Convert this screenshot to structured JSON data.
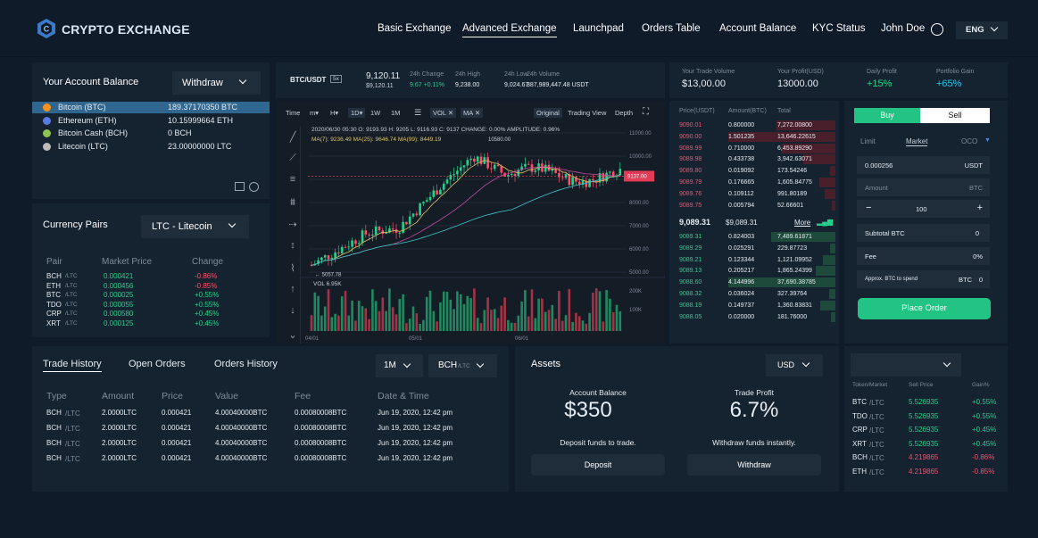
{
  "header": {
    "logo": "CRYPTO EXCHANGE",
    "nav": [
      "Basic Exchange",
      "Advanced Exchange",
      "Launchpad",
      "Orders Table",
      "Account Balance",
      "KYC Status"
    ],
    "user": "John Doe",
    "lang": "ENG"
  },
  "account": {
    "title": "Your Account Balance",
    "withdraw": "Withdraw",
    "coins": [
      {
        "name": "Bitcoin (BTC)",
        "amt": "189.37170350 BTC",
        "color": "#f7931a"
      },
      {
        "name": "Ethereum (ETH)",
        "amt": "10.15999664 ETH",
        "color": "#5b7be0"
      },
      {
        "name": "Bitcoin Cash (BCH)",
        "amt": "0 BCH",
        "color": "#8dc351"
      },
      {
        "name": "Litecoin (LTC)",
        "amt": "23.00000000 LTC",
        "color": "#bfbbbb"
      }
    ]
  },
  "pairs": {
    "title": "Currency Pairs",
    "selected": "LTC - Litecoin",
    "headers": [
      "Pair",
      "Market Price",
      "Change"
    ],
    "rows": [
      {
        "p": "BCH",
        "s": "/LTC",
        "price": "0.000421",
        "ch": "-0.86%",
        "up": false
      },
      {
        "p": "ETH",
        "s": "/LTC",
        "price": "0.000456",
        "ch": "-0.85%",
        "up": false
      },
      {
        "p": "BTC",
        "s": "/LTC",
        "price": "0.000025",
        "ch": "+0.55%",
        "up": true
      },
      {
        "p": "TDO",
        "s": "/LTC",
        "price": "0.000055",
        "ch": "+0.55%",
        "up": true
      },
      {
        "p": "CRP",
        "s": "/LTC",
        "price": "0.000580",
        "ch": "+0.45%",
        "up": true
      },
      {
        "p": "XRT",
        "s": "/LTC",
        "price": "0.000125",
        "ch": "+0.45%",
        "up": true
      }
    ]
  },
  "ticker": {
    "pair": "BTC/USDT",
    "lev": "5x",
    "price": "9,120.11",
    "price_sub": "$9,120.11",
    "stats": [
      {
        "label": "24h Change",
        "val": "9.67 +0.11%",
        "green": true
      },
      {
        "label": "24h High",
        "val": "9,238.00"
      },
      {
        "label": "24h Low",
        "val": "9,024.67"
      },
      {
        "label": "24h Volume",
        "val": "387,989,447.48 USDT"
      }
    ]
  },
  "chart": {
    "toolbar": [
      "Time",
      "m▾",
      "H▾",
      "1D▾",
      "1W",
      "1M",
      "VOL ✕",
      "MA ✕",
      "Original",
      "Trading View",
      "Depth"
    ],
    "ohlc": "2020/06/30 05:30  O: 9193.93  H: 9205  L: 9116.93  C: 9137  CHANGE: 0.00%  AMPLITUDE: 0.96%",
    "ma": "MA(7): 9236.49  MA(25): 9646.74  MA(99): 8449.19",
    "yticks": [
      "11000.00",
      "10000.00",
      "9000.00",
      "8000.00",
      "7000.00",
      "6000.00",
      "5000.00"
    ],
    "vticks": [
      "200K",
      "100K"
    ],
    "vol": "VOL 6.95K",
    "xticks": [
      "04/01",
      "05/01",
      "06/01"
    ],
    "hi": "10580.00",
    "lo": "5057.78",
    "last": "9137.00"
  },
  "trade": {
    "vol_label": "Your Trade Volume",
    "vol": "$13,00.00",
    "profit_label": "Your Profit(USD)",
    "profit": "13000.00",
    "daily_label": "Daily Profit",
    "daily": "+15%",
    "gain_label": "Portfolio Gain",
    "gain": "+65%"
  },
  "orderbook": {
    "headers": [
      "Price(USDT)",
      "Amount(BTC)",
      "Total"
    ],
    "asks": [
      [
        "9090.01",
        "0.800000",
        "7,272.00800",
        0.55
      ],
      [
        "9090.00",
        "1.501235",
        "13,646.22615",
        1
      ],
      [
        "9089.99",
        "0.710000",
        "6,453.89290",
        0.5
      ],
      [
        "9089.98",
        "0.433738",
        "3,942.63071",
        0.3
      ],
      [
        "9089.80",
        "0.019092",
        "173.54246",
        0.05
      ],
      [
        "9089.79",
        "0.176665",
        "1,605.84775",
        0.15
      ],
      [
        "9089.76",
        "0.109112",
        "991.80189",
        0.1
      ],
      [
        "9089.75",
        "0.005794",
        "52.66601",
        0.03
      ]
    ],
    "mid": "9,089.31",
    "mid2": "$9,089.31",
    "more": "More",
    "bids": [
      [
        "9089.31",
        "0.824003",
        "7,489.61871",
        0.6
      ],
      [
        "9089.29",
        "0.025291",
        "229.87723",
        0.05
      ],
      [
        "9089.21",
        "0.123344",
        "1,121.09952",
        0.12
      ],
      [
        "9089.13",
        "0.205217",
        "1,865.24399",
        0.18
      ],
      [
        "9088.60",
        "4.144996",
        "37,690.38785",
        1
      ],
      [
        "9088.32",
        "0.036024",
        "327.39764",
        0.06
      ],
      [
        "9088.19",
        "0.149737",
        "1,360.83831",
        0.14
      ],
      [
        "9088.05",
        "0.020000",
        "181.76000",
        0.04
      ]
    ]
  },
  "order": {
    "buy": "Buy",
    "sell": "Sell",
    "types": [
      "Limit",
      "Market",
      "OCO"
    ],
    "price": "0.000256",
    "price_unit": "USDT",
    "amount": "Amount",
    "amount_unit": "BTC",
    "qty": "100",
    "subtotal": "Subtotal BTC",
    "subtotal_val": "0",
    "fee": "Fee",
    "fee_val": "0%",
    "approx": "Approx. BTC to spend",
    "approx_unit": "BTC",
    "approx_val": "0",
    "place": "Place Order"
  },
  "history": {
    "tabs": [
      "Trade History",
      "Open Orders",
      "Orders History"
    ],
    "period": "1M",
    "pair": "BCH",
    "pair_sub": "/LTC",
    "headers": [
      "Type",
      "Amount",
      "Price",
      "Value",
      "Fee",
      "Date & Time"
    ],
    "rows": [
      [
        "BCH",
        "/LTC",
        "2.0000LTC",
        "0.000421",
        "4.00040000BTC",
        "0.00080008BTC",
        "Jun 19, 2020, 12:42 pm"
      ],
      [
        "BCH",
        "/LTC",
        "2.0000LTC",
        "0.000421",
        "4.00040000BTC",
        "0.00080008BTC",
        "Jun 19, 2020, 12:42 pm"
      ],
      [
        "BCH",
        "/LTC",
        "2.0000LTC",
        "0.000421",
        "4.00040000BTC",
        "0.00080008BTC",
        "Jun 19, 2020, 12:42 pm"
      ],
      [
        "BCH",
        "/LTC",
        "2.0000LTC",
        "0.000421",
        "4.00040000BTC",
        "0.00080008BTC",
        "Jun 19, 2020, 12:42 pm"
      ]
    ]
  },
  "assets": {
    "title": "Assets",
    "currency": "USD",
    "bal_label": "Account Balance",
    "bal": "$350",
    "deposit_text": "Deposit funds to trade.",
    "deposit": "Deposit",
    "tp_label": "Trade Profit",
    "tp": "6.7%",
    "withdraw_text": "Withdraw funds instantly.",
    "withdraw": "Withdraw"
  },
  "market": {
    "headers": [
      "Token/Market",
      "Sell Price",
      "Gain%"
    ],
    "rows": [
      {
        "p": "BTC",
        "s": "/LTC",
        "price": "5.526935",
        "g": "+0.55%",
        "up": true
      },
      {
        "p": "TDO",
        "s": "/LTC",
        "price": "5.526935",
        "g": "+0.55%",
        "up": true
      },
      {
        "p": "CRP",
        "s": "/LTC",
        "price": "5.526935",
        "g": "+0.45%",
        "up": true
      },
      {
        "p": "XRT",
        "s": "/LTC",
        "price": "5.526935",
        "g": "+0.45%",
        "up": true
      },
      {
        "p": "BCH",
        "s": "/LTC",
        "price": "4.219865",
        "g": "-0.86%",
        "up": false
      },
      {
        "p": "ETH",
        "s": "/LTC",
        "price": "4.219865",
        "g": "-0.85%",
        "up": false
      }
    ]
  }
}
